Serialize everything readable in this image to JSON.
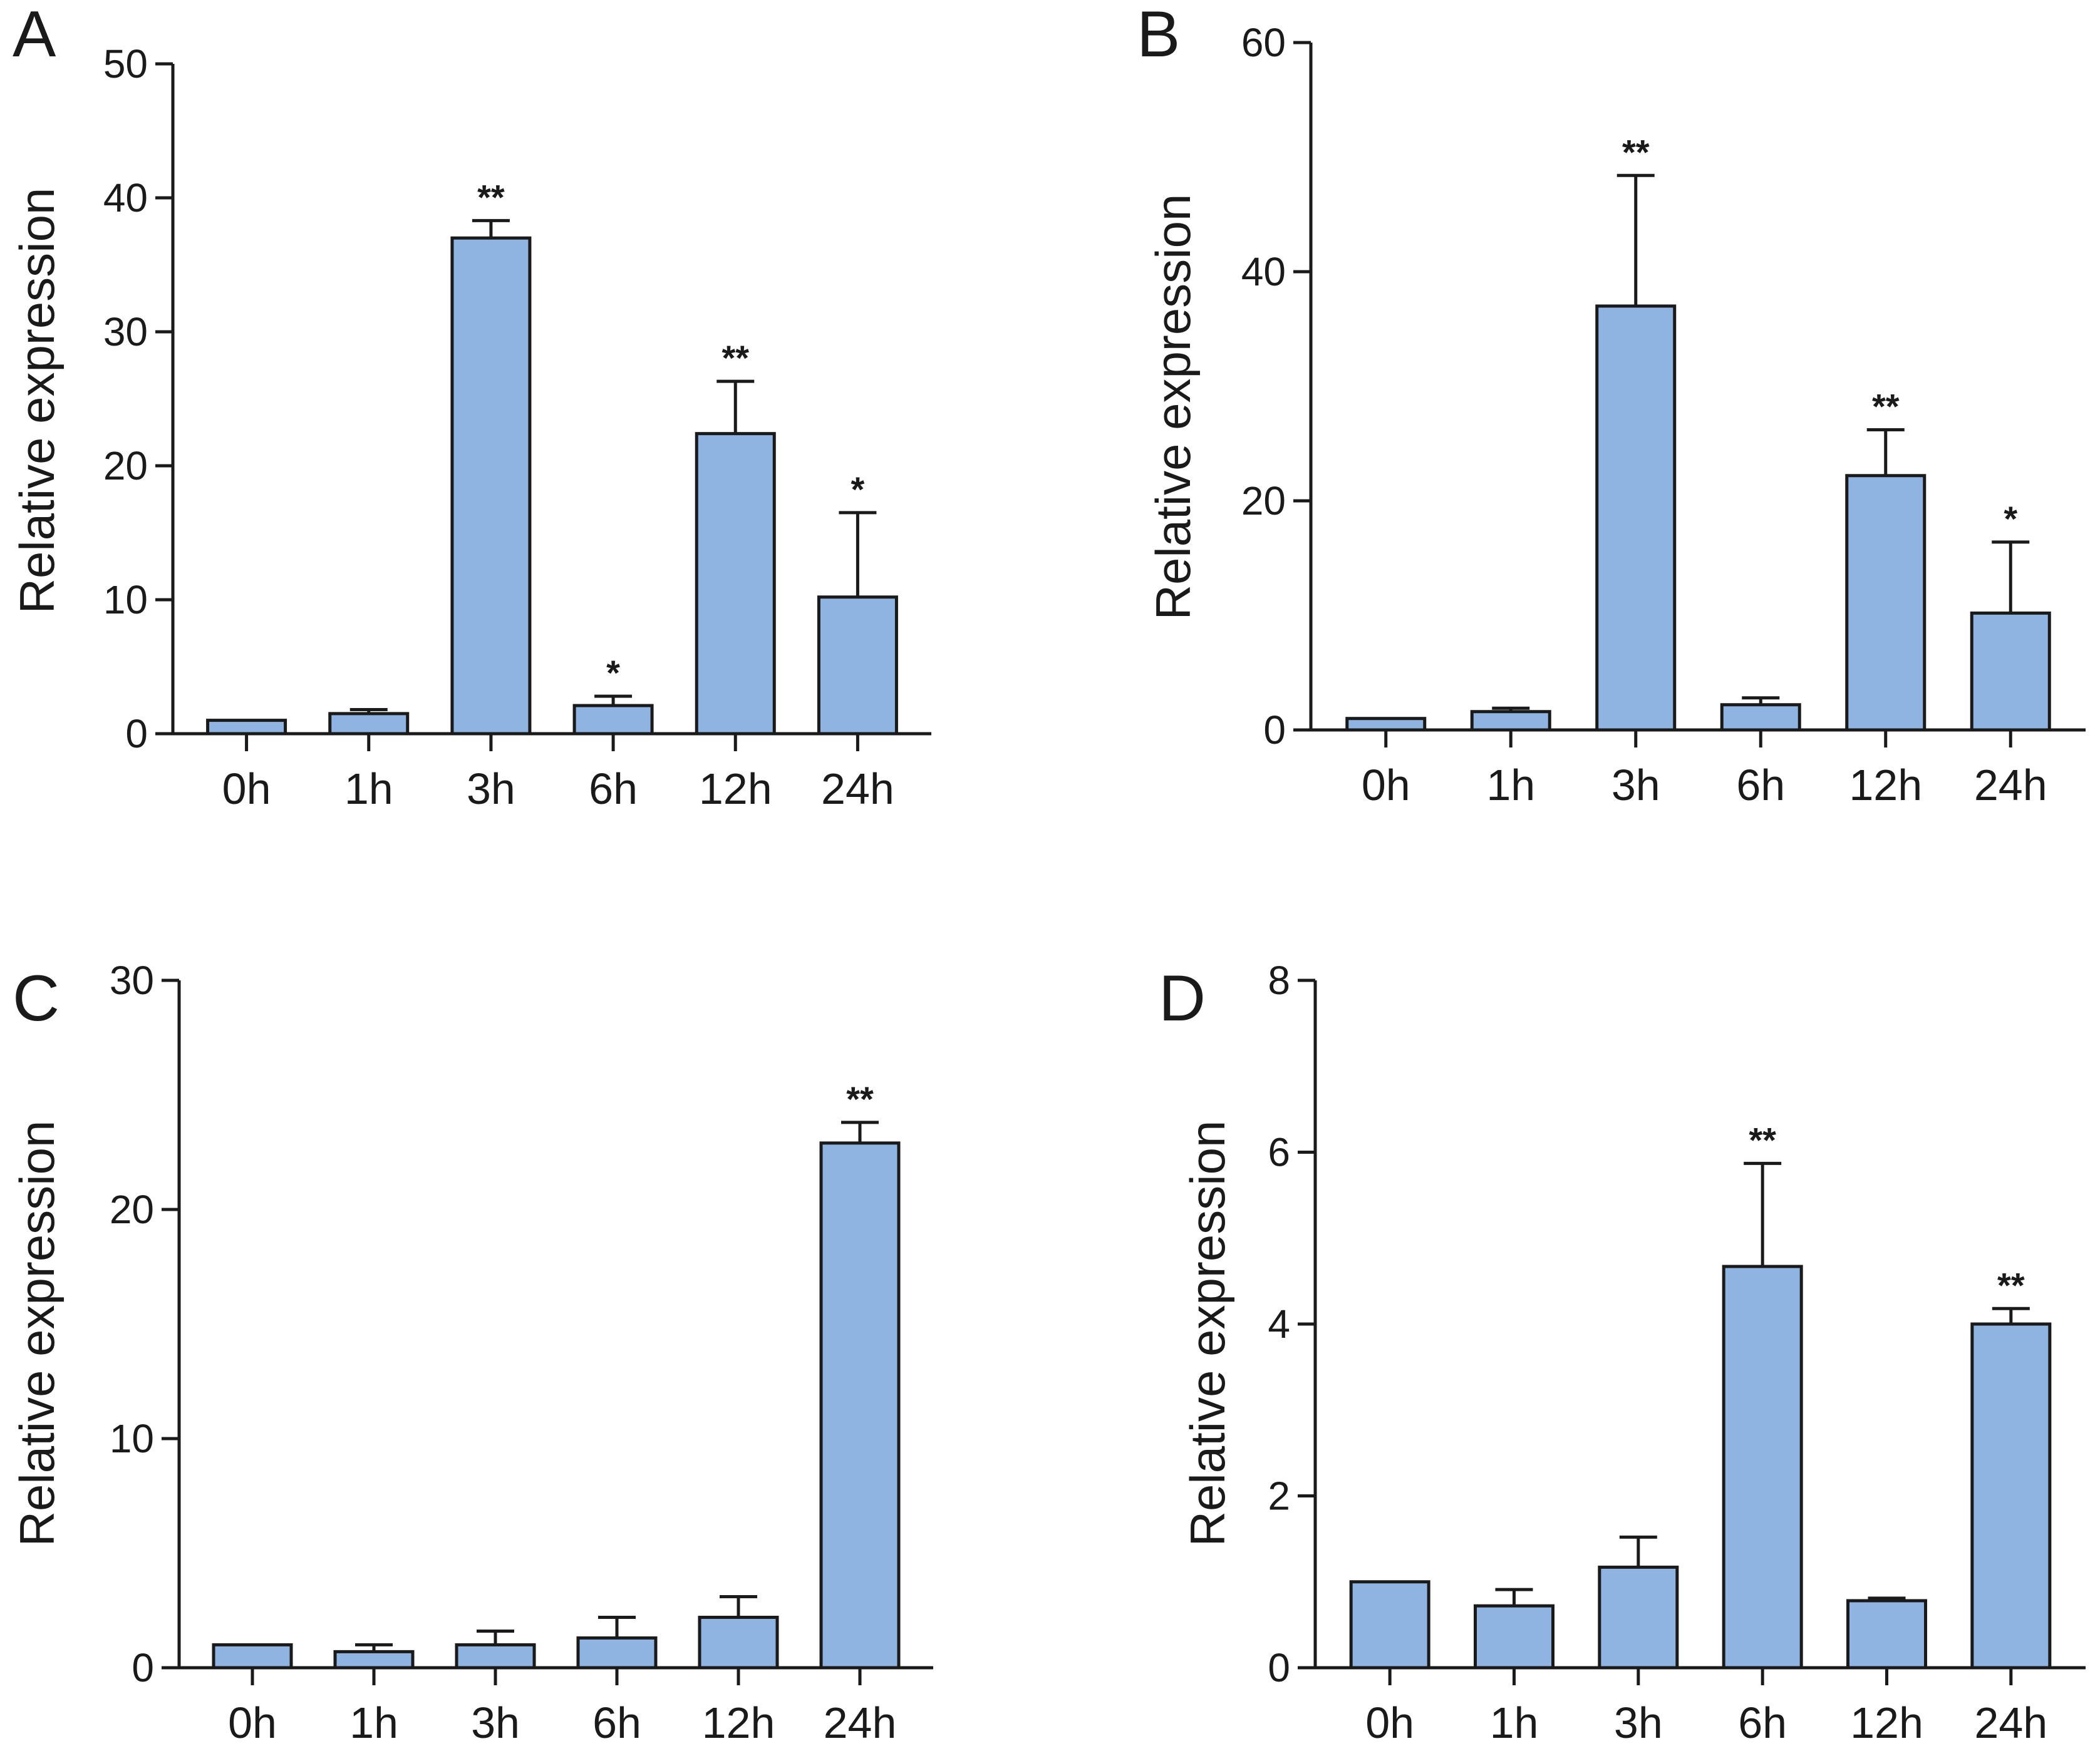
{
  "figure": {
    "bar_color": "#8fb4e1",
    "edge_color": "#1a1a1a"
  },
  "chart_data": [
    {
      "panel": "A",
      "type": "bar",
      "ylabel": "Relative expression",
      "xlabel": "",
      "categories": [
        "0h",
        "1h",
        "3h",
        "6h",
        "12h",
        "24h"
      ],
      "values": [
        1.0,
        1.5,
        37.0,
        2.1,
        22.4,
        10.2
      ],
      "errors": [
        0.0,
        0.3,
        1.3,
        0.7,
        3.9,
        6.3
      ],
      "significance": [
        "",
        "",
        "**",
        "*",
        "**",
        "*"
      ],
      "ylim": [
        0,
        50
      ],
      "yticks": [
        0,
        10,
        20,
        30,
        40,
        50
      ]
    },
    {
      "panel": "B",
      "type": "bar",
      "ylabel": "Relative expression",
      "xlabel": "",
      "categories": [
        "0h",
        "1h",
        "3h",
        "6h",
        "12h",
        "24h"
      ],
      "values": [
        1.0,
        1.6,
        37.0,
        2.2,
        22.2,
        10.2
      ],
      "errors": [
        0.0,
        0.3,
        11.4,
        0.6,
        4.0,
        6.2
      ],
      "significance": [
        "",
        "",
        "**",
        "",
        "**",
        "*"
      ],
      "ylim": [
        0,
        60
      ],
      "yticks": [
        0,
        20,
        40,
        60
      ]
    },
    {
      "panel": "C",
      "type": "bar",
      "ylabel": "Relative expression",
      "xlabel": "",
      "categories": [
        "0h",
        "1h",
        "3h",
        "6h",
        "12h",
        "24h"
      ],
      "values": [
        1.0,
        0.7,
        1.0,
        1.3,
        2.2,
        22.9
      ],
      "errors": [
        0.0,
        0.3,
        0.6,
        0.9,
        0.9,
        0.9
      ],
      "significance": [
        "",
        "",
        "",
        "",
        "",
        "**"
      ],
      "ylim": [
        0,
        30
      ],
      "yticks": [
        0,
        10,
        20,
        30
      ]
    },
    {
      "panel": "D",
      "type": "bar",
      "ylabel": "Relative expression",
      "xlabel": "",
      "categories": [
        "0h",
        "1h",
        "3h",
        "6h",
        "12h",
        "24h"
      ],
      "values": [
        1.0,
        0.72,
        1.17,
        4.67,
        0.78,
        4.0
      ],
      "errors": [
        0.0,
        0.19,
        0.35,
        1.2,
        0.03,
        0.18
      ],
      "significance": [
        "",
        "",
        "",
        "**",
        "",
        "**"
      ],
      "ylim": [
        0,
        8
      ],
      "yticks": [
        0,
        2,
        4,
        6,
        8
      ]
    }
  ]
}
